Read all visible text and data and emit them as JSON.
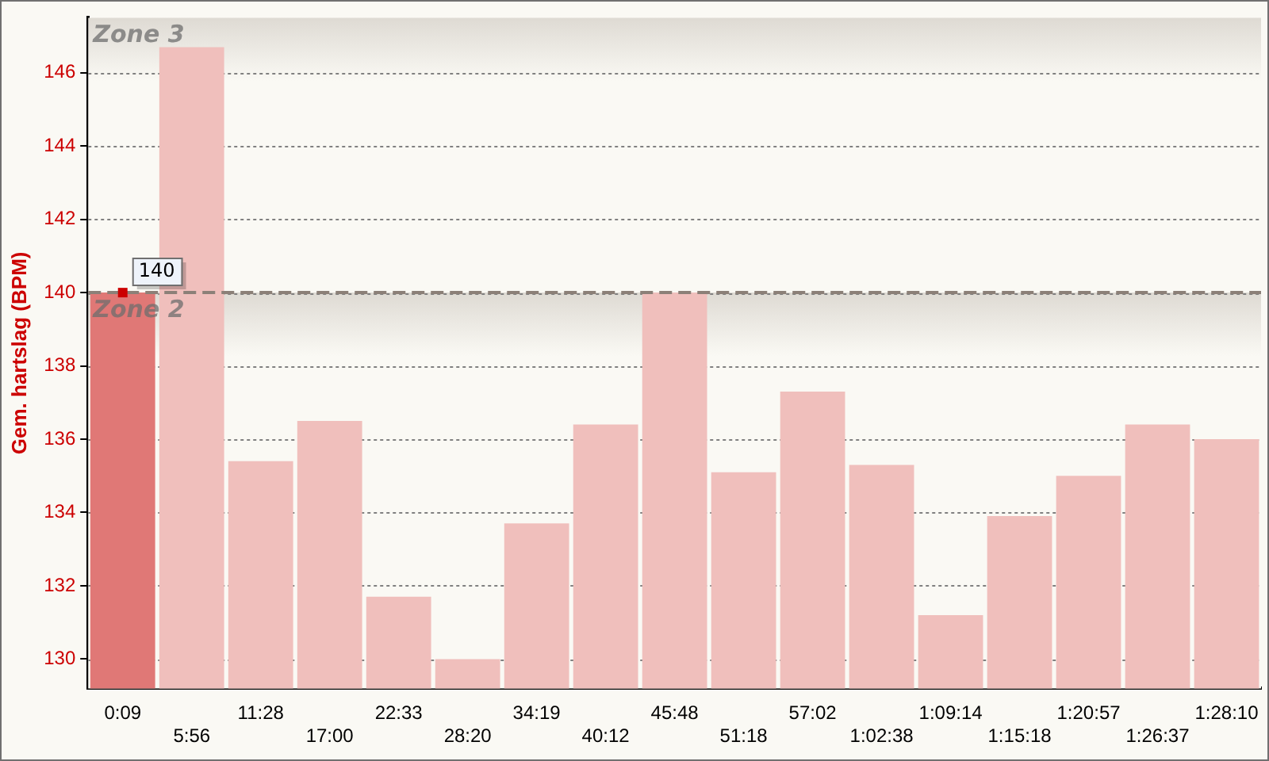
{
  "chart_data": {
    "type": "bar",
    "ylabel": "Gem. hartslag (BPM)",
    "categories": [
      "0:09",
      "5:56",
      "11:28",
      "17:00",
      "22:33",
      "28:20",
      "34:19",
      "40:12",
      "45:48",
      "51:18",
      "57:02",
      "1:02:38",
      "1:09:14",
      "1:15:18",
      "1:20:57",
      "1:26:37",
      "1:28:10"
    ],
    "values": [
      140,
      146.7,
      135.4,
      136.5,
      131.7,
      130.0,
      133.7,
      136.4,
      140.0,
      135.1,
      137.3,
      135.3,
      131.2,
      133.9,
      135.0,
      136.4,
      136.0
    ],
    "colors": [
      "#e07876",
      "#f0bfbc",
      "#f0bfbc",
      "#f0bfbc",
      "#f0bfbc",
      "#f0bfbc",
      "#f0bfbc",
      "#f0bfbc",
      "#f0bfbc",
      "#f0bfbc",
      "#f0bfbc",
      "#f0bfbc",
      "#f0bfbc",
      "#f0bfbc",
      "#f0bfbc",
      "#f0bfbc",
      "#f0bfbc"
    ],
    "ylim": [
      129.2,
      147.5
    ],
    "yticks": [
      130,
      132,
      134,
      136,
      138,
      140,
      142,
      144,
      146
    ],
    "grid": "y",
    "legend": false,
    "bands": [
      {
        "axis": "y",
        "from": 140,
        "to": 147.5,
        "label": "Zone 3",
        "color": "#dedad3"
      },
      {
        "axis": "y",
        "from": 129.2,
        "to": 140,
        "label": "Zone 2",
        "color": "#dedad3"
      }
    ],
    "ref_lines": [
      {
        "axis": "y",
        "value": 140,
        "color": "#8c8078",
        "line_style": "dashed"
      }
    ],
    "annotations": [
      {
        "text": "140",
        "x": "0:09",
        "y": 140
      }
    ]
  }
}
